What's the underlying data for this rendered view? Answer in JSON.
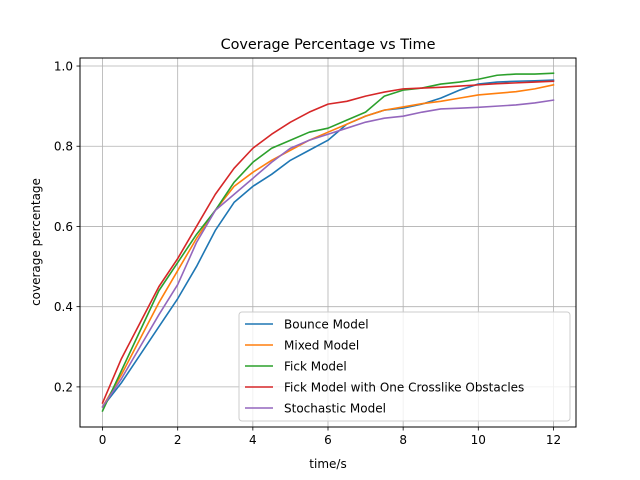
{
  "chart_data": {
    "type": "line",
    "title": "Coverage Percentage vs Time",
    "xlabel": "time/s",
    "ylabel": "coverage percentage",
    "xlim": [
      -0.6,
      12.6
    ],
    "ylim": [
      0.1,
      1.02
    ],
    "xticks": [
      0,
      2,
      4,
      6,
      8,
      10,
      12
    ],
    "yticks": [
      0.2,
      0.4,
      0.6,
      0.8,
      1.0
    ],
    "ytick_labels": [
      "0.2",
      "0.4",
      "0.6",
      "0.8",
      "1.0"
    ],
    "grid": true,
    "legend_position": "lower-right",
    "series": [
      {
        "name": "Bounce Model",
        "color": "#1f77b4",
        "x": [
          0,
          0.5,
          1,
          1.5,
          2,
          2.5,
          3,
          3.5,
          4,
          4.5,
          5,
          5.5,
          6,
          6.5,
          7,
          7.5,
          8,
          8.5,
          9,
          9.5,
          10,
          10.5,
          11,
          11.5,
          12
        ],
        "y": [
          0.15,
          0.21,
          0.28,
          0.35,
          0.42,
          0.5,
          0.59,
          0.66,
          0.7,
          0.73,
          0.765,
          0.79,
          0.815,
          0.855,
          0.875,
          0.89,
          0.895,
          0.905,
          0.92,
          0.94,
          0.955,
          0.96,
          0.962,
          0.963,
          0.965
        ]
      },
      {
        "name": "Mixed Model",
        "color": "#ff7f0e",
        "x": [
          0,
          0.5,
          1,
          1.5,
          2,
          2.5,
          3,
          3.5,
          4,
          4.5,
          5,
          5.5,
          6,
          6.5,
          7,
          7.5,
          8,
          8.5,
          9,
          9.5,
          10,
          10.5,
          11,
          11.5,
          12
        ],
        "y": [
          0.15,
          0.23,
          0.32,
          0.41,
          0.49,
          0.57,
          0.64,
          0.7,
          0.735,
          0.765,
          0.79,
          0.815,
          0.835,
          0.855,
          0.875,
          0.89,
          0.898,
          0.906,
          0.912,
          0.92,
          0.928,
          0.932,
          0.936,
          0.943,
          0.953
        ]
      },
      {
        "name": "Fick Model",
        "color": "#2ca02c",
        "x": [
          0,
          0.5,
          1,
          1.5,
          2,
          2.5,
          3,
          3.5,
          4,
          4.5,
          5,
          5.5,
          6,
          6.5,
          7,
          7.5,
          8,
          8.5,
          9,
          9.5,
          10,
          10.5,
          11,
          11.5,
          12
        ],
        "y": [
          0.14,
          0.24,
          0.34,
          0.44,
          0.51,
          0.58,
          0.64,
          0.71,
          0.76,
          0.795,
          0.815,
          0.835,
          0.845,
          0.865,
          0.885,
          0.925,
          0.94,
          0.945,
          0.955,
          0.96,
          0.967,
          0.977,
          0.98,
          0.98,
          0.982
        ]
      },
      {
        "name": "Fick Model with One Crosslike Obstacles",
        "color": "#d62728",
        "x": [
          0,
          0.5,
          1,
          1.5,
          2,
          2.5,
          3,
          3.5,
          4,
          4.5,
          5,
          5.5,
          6,
          6.5,
          7,
          7.5,
          8,
          8.5,
          9,
          9.5,
          10,
          10.5,
          11,
          11.5,
          12
        ],
        "y": [
          0.16,
          0.27,
          0.36,
          0.45,
          0.52,
          0.6,
          0.68,
          0.745,
          0.795,
          0.83,
          0.86,
          0.885,
          0.905,
          0.912,
          0.925,
          0.935,
          0.943,
          0.945,
          0.947,
          0.95,
          0.953,
          0.956,
          0.958,
          0.96,
          0.962
        ]
      },
      {
        "name": "Stochastic Model",
        "color": "#9467bd",
        "x": [
          0,
          0.5,
          1,
          1.5,
          2,
          2.5,
          3,
          3.5,
          4,
          4.5,
          5,
          5.5,
          6,
          6.5,
          7,
          7.5,
          8,
          8.5,
          9,
          9.5,
          10,
          10.5,
          11,
          11.5,
          12
        ],
        "y": [
          0.15,
          0.22,
          0.3,
          0.38,
          0.455,
          0.56,
          0.64,
          0.68,
          0.72,
          0.76,
          0.795,
          0.815,
          0.83,
          0.845,
          0.86,
          0.87,
          0.875,
          0.885,
          0.893,
          0.895,
          0.897,
          0.9,
          0.903,
          0.908,
          0.915
        ]
      }
    ]
  }
}
